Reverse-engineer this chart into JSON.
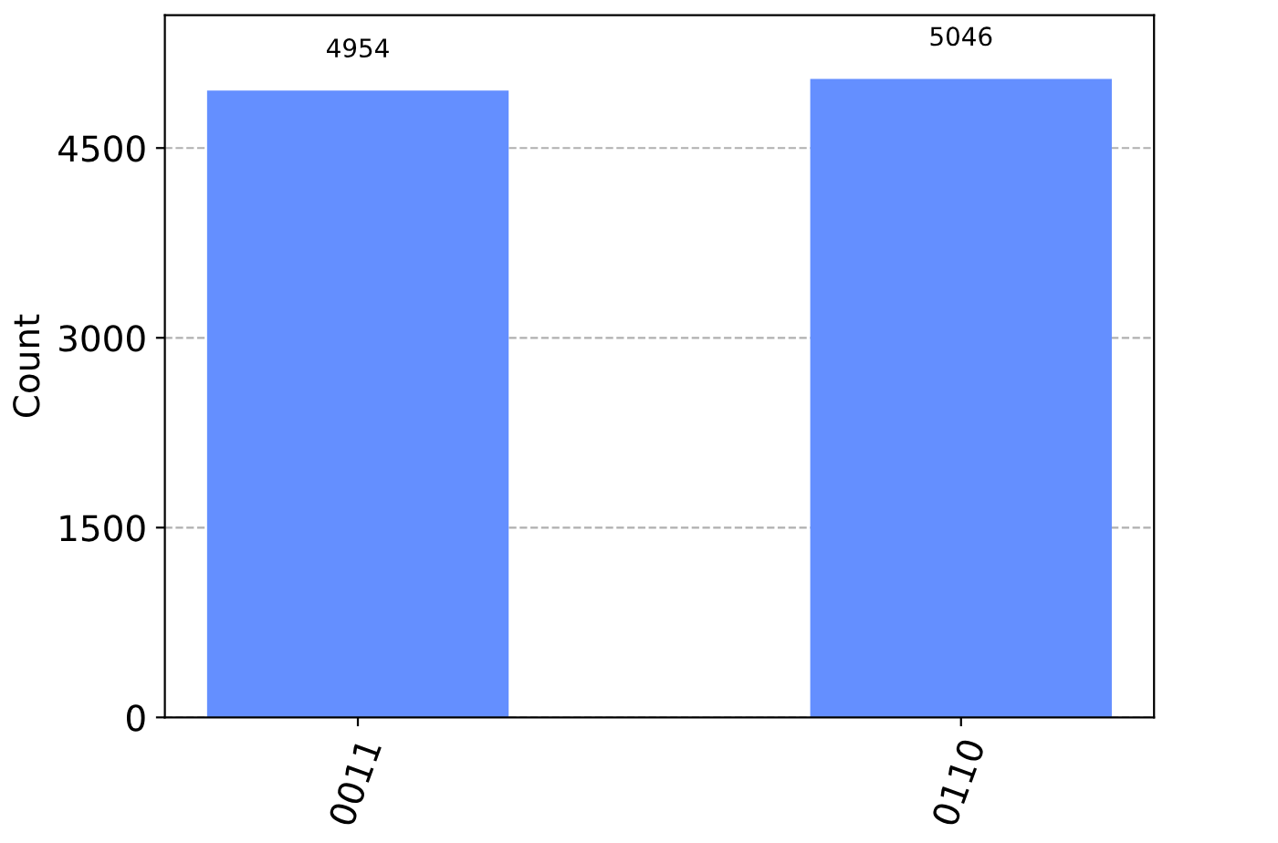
{
  "chart_data": {
    "type": "bar",
    "ylabel": "Count",
    "categories": [
      "0011",
      "0110"
    ],
    "values": [
      4954,
      5046
    ],
    "color": "#648fff",
    "ylim": [
      0,
      5550
    ],
    "yticks": [
      0,
      1500,
      3000,
      4500
    ],
    "grid": "y",
    "data_labels": true
  }
}
